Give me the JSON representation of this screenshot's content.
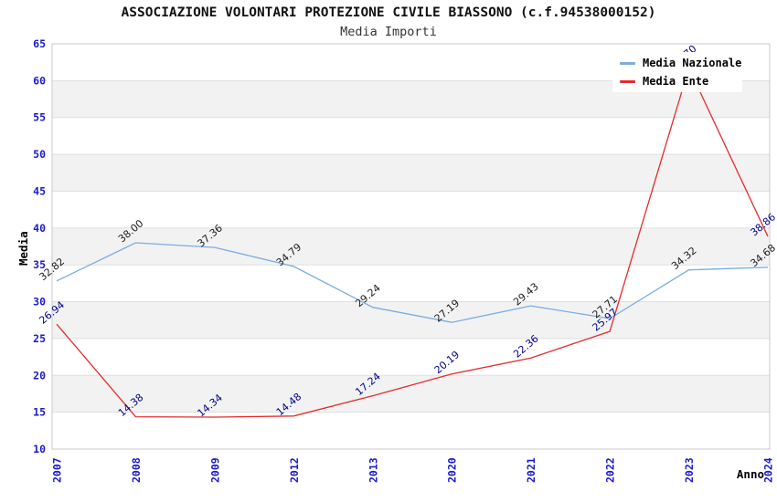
{
  "title": "ASSOCIAZIONE VOLONTARI PROTEZIONE CIVILE BIASSONO (c.f.94538000152)",
  "subtitle": "Media Importi",
  "legend": {
    "position": "top-right",
    "items": [
      "Media Nazionale",
      "Media Ente"
    ]
  },
  "colors": {
    "tick_label_blue": "#1a1acd",
    "band_gray": "#f2f2f2",
    "grid_line": "#e0e0e0",
    "plot_border": "#c9c9c9",
    "nazionale_line": "#79ade2",
    "ente_line": "#e62b2b",
    "nazionale_point_label": "#1a1a1a",
    "ente_point_label": "#00008b"
  },
  "chart_data": {
    "type": "line",
    "title": "ASSOCIAZIONE VOLONTARI PROTEZIONE CIVILE BIASSONO (c.f.94538000152)",
    "subtitle": "Media Importi",
    "xlabel": "Anno",
    "ylabel": "Media",
    "x_labels": [
      "2007",
      "2008",
      "2009",
      "2012",
      "2013",
      "2020",
      "2021",
      "2022",
      "2023",
      "2024"
    ],
    "ylim": [
      10,
      65
    ],
    "ytick_step": 5,
    "grid": "alternating-horizontal-bands",
    "legend_position": "top-right",
    "series": [
      {
        "name": "Media Nazionale",
        "color": "#79ade2",
        "label_color": "#1a1a1a",
        "values": [
          32.82,
          38.0,
          37.36,
          34.79,
          29.24,
          27.19,
          29.43,
          27.71,
          34.32,
          34.68
        ]
      },
      {
        "name": "Media Ente",
        "color": "#e62b2b",
        "label_color": "#00008b",
        "values": [
          26.94,
          14.38,
          14.34,
          14.48,
          17.24,
          20.19,
          22.36,
          25.97,
          61.7,
          38.86
        ],
        "note": "2023 value estimated from line geometry; its label is hidden behind the legend box"
      }
    ]
  }
}
